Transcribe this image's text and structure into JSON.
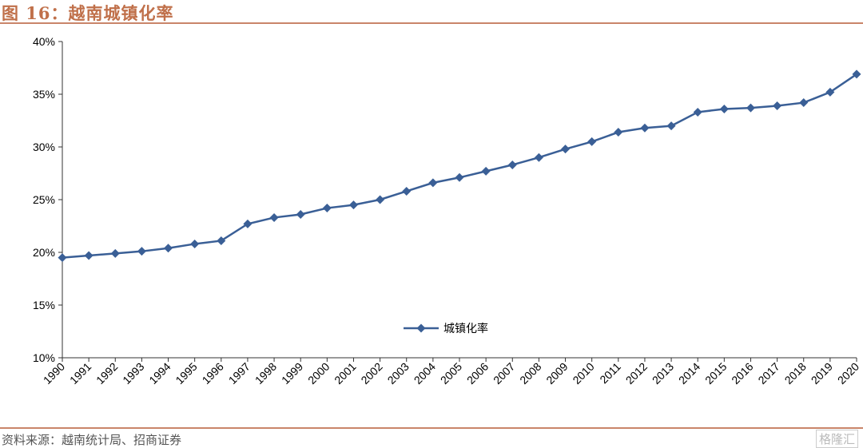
{
  "header": {
    "title": "图 16：越南城镇化率"
  },
  "footer": {
    "source": "资料来源：越南统计局、招商证券",
    "watermark": "格隆汇"
  },
  "chart_data": {
    "type": "line",
    "title": "",
    "xlabel": "",
    "ylabel": "",
    "ylim": [
      10,
      40
    ],
    "yticks": [
      "10%",
      "15%",
      "20%",
      "25%",
      "30%",
      "35%",
      "40%"
    ],
    "grid": false,
    "legend_placement": "bottom-center",
    "line_color": "#3a5f96",
    "categories": [
      "1990",
      "1991",
      "1992",
      "1993",
      "1994",
      "1995",
      "1996",
      "1997",
      "1998",
      "1999",
      "2000",
      "2001",
      "2002",
      "2003",
      "2004",
      "2005",
      "2006",
      "2007",
      "2008",
      "2009",
      "2010",
      "2011",
      "2012",
      "2013",
      "2014",
      "2015",
      "2016",
      "2017",
      "2018",
      "2019",
      "2020"
    ],
    "series": [
      {
        "name": "城镇化率",
        "values": [
          19.5,
          19.7,
          19.9,
          20.1,
          20.4,
          20.8,
          21.1,
          22.7,
          23.3,
          23.6,
          24.2,
          24.5,
          25.0,
          25.8,
          26.6,
          27.1,
          27.7,
          28.3,
          29.0,
          29.8,
          30.5,
          31.4,
          31.8,
          32.0,
          33.3,
          33.6,
          33.7,
          33.9,
          34.2,
          35.2,
          36.9
        ]
      }
    ]
  }
}
